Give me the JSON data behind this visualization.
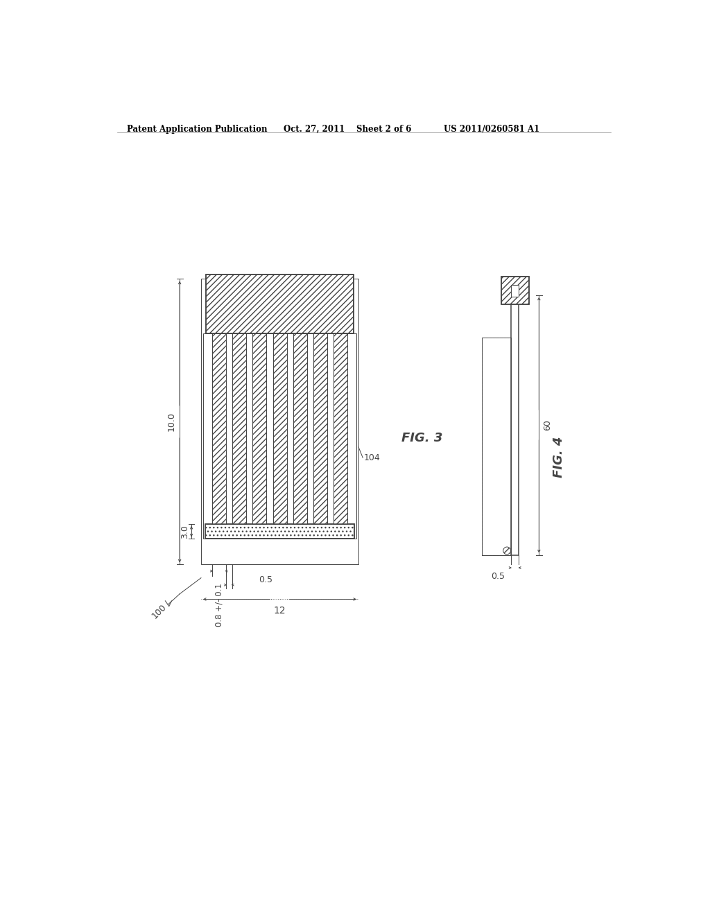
{
  "bg_color": "#ffffff",
  "lc": "#444444",
  "header_text": "Patent Application Publication",
  "header_date": "Oct. 27, 2011",
  "header_sheet": "Sheet 2 of 6",
  "header_patent": "US 2011/0260581 A1",
  "fig3_label": "FIG. 3",
  "fig4_label": "FIG. 4",
  "label_104": "104",
  "label_60": "60",
  "label_10_0": "10.0",
  "label_3_0": "3.0",
  "label_0_8": "0.8 +/- 0.1",
  "label_0_5": "0.5",
  "label_12": "12",
  "label_100": "100",
  "label_0_5_fig4": "0.5",
  "n_strips": 7
}
